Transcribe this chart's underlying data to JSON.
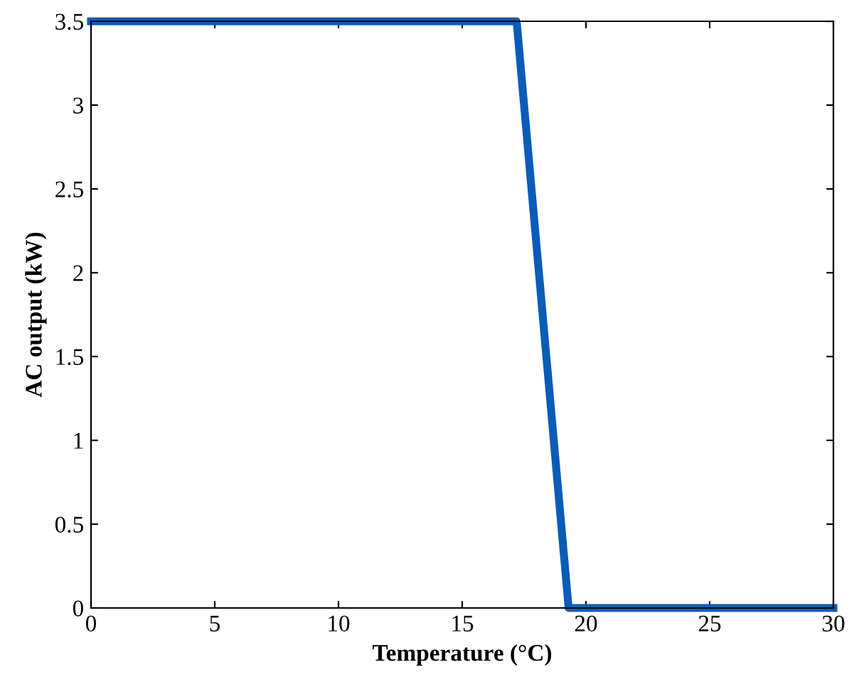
{
  "chart_data": {
    "type": "line",
    "xlabel": "Temperature (°C)",
    "ylabel": "AC output (kW)",
    "x": [
      0,
      17.2,
      19.3,
      30
    ],
    "values": [
      3.5,
      3.5,
      0,
      0
    ],
    "color": "#0a5cb8",
    "xlim": [
      0,
      30
    ],
    "xticks": [
      0,
      5,
      10,
      15,
      20,
      25,
      30
    ],
    "ylim": [
      0,
      3.5
    ],
    "yticks": [
      0,
      0.5,
      1,
      1.5,
      2,
      2.5,
      3,
      3.5
    ],
    "grid": false,
    "legend": false,
    "marker": "none",
    "line_style": "solid"
  }
}
